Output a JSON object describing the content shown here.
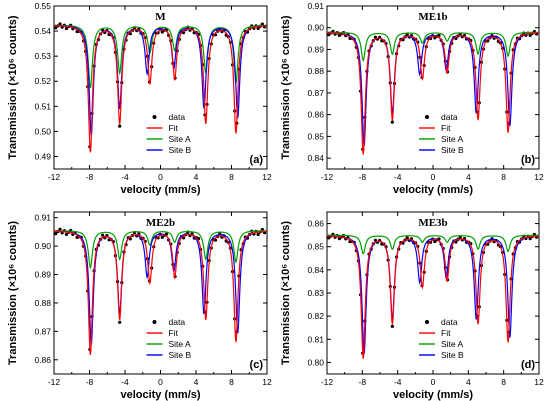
{
  "chart_data": [
    {
      "type": "line",
      "title": "M",
      "panel_label": "(a)",
      "xlabel": "velocity (mm/s)",
      "ylabel": "Transmission (×10⁶ counts)",
      "xlim": [
        -12,
        12
      ],
      "ylim": [
        0.485,
        0.55
      ],
      "xticks": [
        -12,
        -8,
        -4,
        0,
        4,
        8,
        12
      ],
      "yticks": [
        0.49,
        0.5,
        0.51,
        0.52,
        0.53,
        0.54,
        0.55
      ],
      "ytick_decimals": 2,
      "baseline": 0.5425,
      "legend": [
        "data",
        "Fit",
        "Site A",
        "Site B"
      ],
      "legend_position": "bottom-center",
      "series": [
        {
          "name": "data",
          "style": "points",
          "color": "#000000"
        },
        {
          "name": "Fit",
          "color": "#ff0000",
          "positions": [
            -7.9,
            -4.6,
            -1.2,
            1.6,
            5.1,
            8.5
          ],
          "depths": [
            0.0505,
            0.039,
            0.023,
            0.021,
            0.039,
            0.043
          ]
        },
        {
          "name": "Site A",
          "color": "#00a000",
          "positions": [
            -7.9,
            -4.6,
            -1.2,
            1.6,
            5.1,
            8.5
          ],
          "depths": [
            0.025,
            0.019,
            0.011,
            0.01,
            0.019,
            0.023
          ]
        },
        {
          "name": "Site B",
          "color": "#0000ff",
          "positions": [
            -7.8,
            -4.6,
            -1.5,
            1.5,
            4.9,
            8.7
          ],
          "depths": [
            0.044,
            0.033,
            0.019,
            0.017,
            0.033,
            0.037
          ]
        }
      ]
    },
    {
      "type": "line",
      "title": "ME1b",
      "panel_label": "(b)",
      "xlabel": "velocity (mm/s)",
      "ylabel": "Transmission (×10⁶ counts)",
      "xlim": [
        -12,
        12
      ],
      "ylim": [
        0.835,
        0.91
      ],
      "xticks": [
        -12,
        -8,
        -4,
        0,
        4,
        8,
        12
      ],
      "yticks": [
        0.84,
        0.85,
        0.86,
        0.87,
        0.88,
        0.89,
        0.9,
        0.91
      ],
      "ytick_decimals": 2,
      "baseline": 0.898,
      "legend": [
        "data",
        "Fit",
        "Site A",
        "Site B"
      ],
      "legend_position": "bottom-center",
      "series": [
        {
          "name": "data",
          "style": "points",
          "color": "#000000"
        },
        {
          "name": "Fit",
          "color": "#ff0000",
          "positions": [
            -7.9,
            -4.6,
            -1.2,
            1.6,
            5.1,
            8.5
          ],
          "depths": [
            0.056,
            0.04,
            0.021,
            0.018,
            0.04,
            0.046
          ]
        },
        {
          "name": "Site A",
          "color": "#00a000",
          "positions": [
            -7.9,
            -4.6,
            -1.2,
            1.6,
            5.1,
            8.5
          ],
          "depths": [
            0.013,
            0.01,
            0.005,
            0.004,
            0.01,
            0.011
          ]
        },
        {
          "name": "Site B",
          "color": "#0000ff",
          "positions": [
            -7.8,
            -4.6,
            -1.5,
            1.5,
            4.9,
            8.7
          ],
          "depths": [
            0.052,
            0.037,
            0.019,
            0.017,
            0.037,
            0.043
          ]
        }
      ]
    },
    {
      "type": "line",
      "title": "ME2b",
      "panel_label": "(c)",
      "xlabel": "velocity (mm/s)",
      "ylabel": "Transmission (×10⁶ counts)",
      "xlim": [
        -12,
        12
      ],
      "ylim": [
        0.855,
        0.912
      ],
      "xticks": [
        -12,
        -8,
        -4,
        0,
        4,
        8,
        12
      ],
      "yticks": [
        0.86,
        0.87,
        0.88,
        0.89,
        0.9,
        0.91
      ],
      "ytick_decimals": 2,
      "baseline": 0.9055,
      "legend": [
        "data",
        "Fit",
        "Site A",
        "Site B"
      ],
      "legend_position": "bottom-center",
      "series": [
        {
          "name": "data",
          "style": "points",
          "color": "#000000"
        },
        {
          "name": "Fit",
          "color": "#ff0000",
          "positions": [
            -7.9,
            -4.6,
            -1.2,
            1.6,
            5.1,
            8.5
          ],
          "depths": [
            0.0435,
            0.031,
            0.018,
            0.016,
            0.031,
            0.039
          ]
        },
        {
          "name": "Site A",
          "color": "#00a000",
          "positions": [
            -7.9,
            -4.6,
            -1.2,
            1.6,
            5.1,
            8.5
          ],
          "depths": [
            0.013,
            0.01,
            0.005,
            0.004,
            0.01,
            0.011
          ]
        },
        {
          "name": "Site B",
          "color": "#0000ff",
          "positions": [
            -7.8,
            -4.6,
            -1.5,
            1.5,
            4.9,
            8.7
          ],
          "depths": [
            0.04,
            0.029,
            0.016,
            0.014,
            0.029,
            0.036
          ]
        }
      ]
    },
    {
      "type": "line",
      "title": "ME3b",
      "panel_label": "(d)",
      "xlabel": "velocity (mm/s)",
      "ylabel": "Transmission (×10⁶ counts)",
      "xlim": [
        -12,
        12
      ],
      "ylim": [
        0.795,
        0.865
      ],
      "xticks": [
        -12,
        -8,
        -4,
        0,
        4,
        8,
        12
      ],
      "yticks": [
        0.8,
        0.81,
        0.82,
        0.83,
        0.84,
        0.85,
        0.86
      ],
      "ytick_decimals": 2,
      "baseline": 0.855,
      "legend": [
        "data",
        "Fit",
        "Site A",
        "Site B"
      ],
      "legend_position": "bottom-center",
      "series": [
        {
          "name": "data",
          "style": "points",
          "color": "#000000"
        },
        {
          "name": "Fit",
          "color": "#ff0000",
          "positions": [
            -7.9,
            -4.6,
            -1.2,
            1.6,
            5.1,
            8.5
          ],
          "depths": [
            0.053,
            0.038,
            0.022,
            0.019,
            0.038,
            0.046
          ]
        },
        {
          "name": "Site A",
          "color": "#00a000",
          "positions": [
            -7.9,
            -4.6,
            -1.2,
            1.6,
            5.1,
            8.5
          ],
          "depths": [
            0.008,
            0.006,
            0.003,
            0.003,
            0.006,
            0.007
          ]
        },
        {
          "name": "Site B",
          "color": "#0000ff",
          "positions": [
            -7.8,
            -4.6,
            -1.5,
            1.5,
            4.9,
            8.7
          ],
          "depths": [
            0.051,
            0.036,
            0.02,
            0.018,
            0.036,
            0.044
          ]
        }
      ]
    }
  ]
}
